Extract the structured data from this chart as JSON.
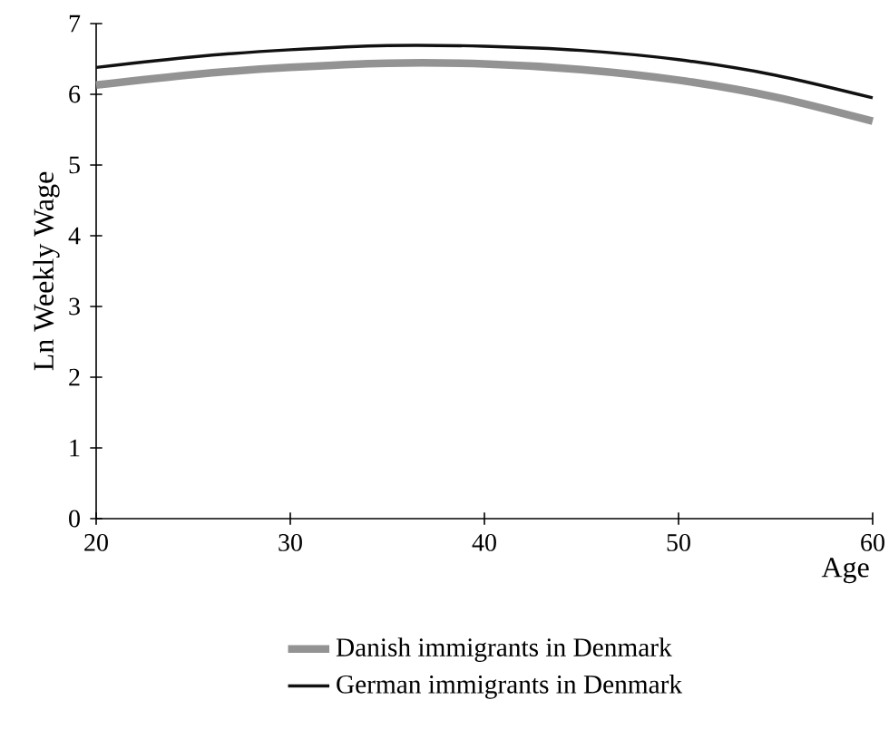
{
  "chart_data": {
    "type": "line",
    "xlabel": "Age",
    "ylabel": "Ln Weekly Wage",
    "x": [
      20,
      25,
      30,
      35,
      40,
      45,
      50,
      55,
      60
    ],
    "series": [
      {
        "name": "Danish immigrants in Denmark",
        "color": "#939393",
        "values": [
          6.13,
          6.28,
          6.38,
          6.44,
          6.43,
          6.35,
          6.2,
          5.96,
          5.62
        ]
      },
      {
        "name": "German immigrants in Denmark",
        "color": "#111111",
        "values": [
          6.38,
          6.53,
          6.63,
          6.69,
          6.68,
          6.62,
          6.49,
          6.27,
          5.95
        ]
      }
    ],
    "xlim": [
      20,
      60
    ],
    "ylim": [
      0,
      7
    ],
    "xticks": [
      20,
      30,
      40,
      50,
      60
    ],
    "yticks": [
      0,
      1,
      2,
      3,
      4,
      5,
      6,
      7
    ],
    "legend": "bottom",
    "grid": false,
    "marker": "none",
    "line_style": "solid"
  }
}
